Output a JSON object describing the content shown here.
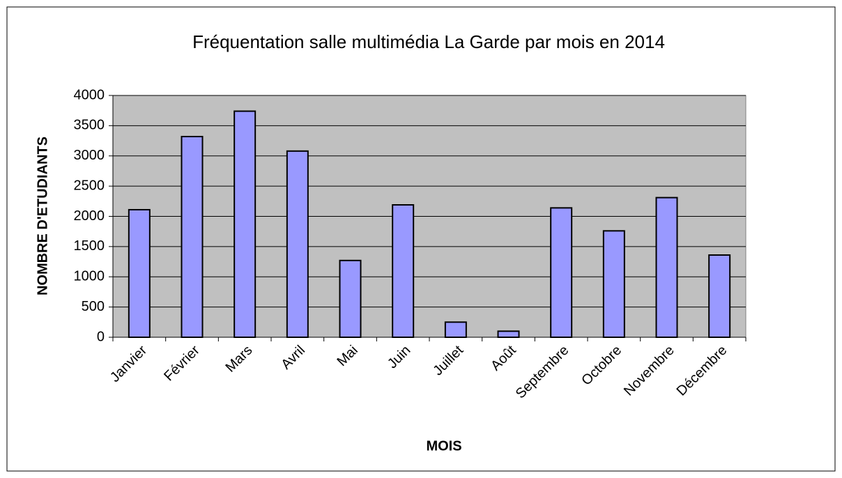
{
  "chart_data": {
    "type": "bar",
    "title": "Fréquentation salle multimédia La Garde par mois en 2014",
    "x_label": "MOIS",
    "y_label": "NOMBRE  D'ETUDIANTS",
    "categories": [
      "Janvier",
      "Février",
      "Mars",
      "Avril",
      "Mai",
      "Juin",
      "Juillet",
      "Août",
      "Septembre",
      "Octobre",
      "Novembre",
      "Décembre"
    ],
    "values": [
      2110,
      3320,
      3740,
      3080,
      1270,
      2190,
      250,
      100,
      2140,
      1760,
      2310,
      1360
    ],
    "color": "#9999ff",
    "ylim": [
      0,
      4000
    ],
    "yticks": [
      0,
      500,
      1000,
      1500,
      2000,
      2500,
      3000,
      3500,
      4000
    ],
    "grid": true
  }
}
